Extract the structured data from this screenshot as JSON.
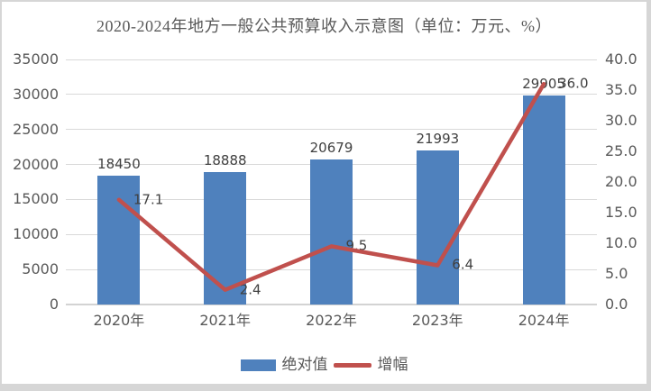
{
  "chart_data": {
    "type": "bar+line",
    "title": "2020-2024年地方一般公共预算收入示意图（单位：万元、%）",
    "categories": [
      "2020年",
      "2021年",
      "2022年",
      "2023年",
      "2024年"
    ],
    "series": [
      {
        "name": "绝对值",
        "type": "bar",
        "axis": "left",
        "values": [
          18450,
          18888,
          20679,
          21993,
          29905
        ],
        "labels": [
          "18450",
          "18888",
          "20679",
          "21993",
          "29905"
        ]
      },
      {
        "name": "增幅",
        "type": "line",
        "axis": "right",
        "values": [
          17.1,
          2.4,
          9.5,
          6.4,
          36.0
        ],
        "labels": [
          "17.1",
          "2.4",
          "9.5",
          "6.4",
          "36.0"
        ]
      }
    ],
    "left_axis": {
      "min": 0,
      "max": 35000,
      "step": 5000,
      "ticks": [
        "0",
        "5000",
        "10000",
        "15000",
        "20000",
        "25000",
        "30000",
        "35000"
      ]
    },
    "right_axis": {
      "min": 0,
      "max": 40,
      "step": 5,
      "ticks": [
        "0.0",
        "5.0",
        "10.0",
        "15.0",
        "20.0",
        "25.0",
        "30.0",
        "35.0",
        "40.0"
      ]
    },
    "grid": true,
    "legend_position": "bottom",
    "colors": {
      "bar": "#4F81BD",
      "line": "#C0504D",
      "grid": "#D9D9D9",
      "axis_line": "#D3D3D3",
      "axis_text": "#595959",
      "data_label_text": "#404040",
      "frame_border": "#D6D6D6"
    }
  }
}
